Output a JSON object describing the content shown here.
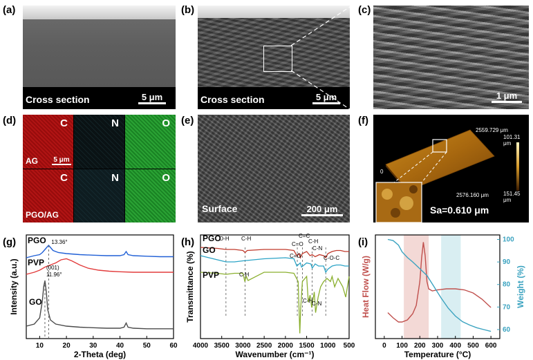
{
  "panels": {
    "a": {
      "letter": "(a)",
      "caption": "Cross section",
      "scale": "5 μm"
    },
    "b": {
      "letter": "(b)",
      "caption": "Cross section",
      "scale": "5 μm"
    },
    "c": {
      "letter": "(c)",
      "scale": "1 μm"
    },
    "d": {
      "letter": "(d)",
      "rows": [
        {
          "name": "AG",
          "elements": [
            "C",
            "N",
            "O"
          ]
        },
        {
          "name": "PGO/AG",
          "elements": [
            "C",
            "N",
            "O"
          ]
        }
      ],
      "scale": "5 μm"
    },
    "e": {
      "letter": "(e)",
      "caption": "Surface",
      "scale": "200 μm"
    },
    "f": {
      "letter": "(f)",
      "dim1": "2559.729 μm",
      "dim2": "2576.160 μm",
      "cmax": "101.31 μm",
      "cmin": "151.45 μm",
      "zero": "0",
      "sa": "Sa=0.610 μm"
    }
  },
  "chart_data": [
    {
      "id": "g",
      "type": "line",
      "letter": "(g)",
      "xlabel": "2-Theta (deg)",
      "ylabel": "Intensity (a.u.)",
      "xlim": [
        5,
        60
      ],
      "xticks": [
        "10",
        "20",
        "30",
        "40",
        "50",
        "60"
      ],
      "series": [
        {
          "name": "PGO",
          "color": "#1f5fd6",
          "peak_label": "13.36°",
          "x": [
            5,
            8,
            10,
            11,
            12,
            13,
            13.36,
            14,
            15,
            17,
            20,
            25,
            30,
            35,
            40,
            41.5,
            42.3,
            43,
            45,
            50,
            55,
            60
          ],
          "y": [
            0.78,
            0.8,
            0.81,
            0.83,
            0.86,
            0.89,
            0.9,
            0.88,
            0.85,
            0.83,
            0.82,
            0.81,
            0.805,
            0.8,
            0.8,
            0.81,
            0.84,
            0.81,
            0.8,
            0.795,
            0.79,
            0.79
          ]
        },
        {
          "name": "PVP",
          "color": "#e23b3b",
          "x": [
            5,
            8,
            10,
            12,
            14,
            16,
            18,
            20,
            22,
            25,
            28,
            32,
            36,
            40,
            45,
            50,
            55,
            60
          ],
          "y": [
            0.62,
            0.64,
            0.66,
            0.69,
            0.71,
            0.73,
            0.76,
            0.77,
            0.75,
            0.71,
            0.68,
            0.66,
            0.65,
            0.645,
            0.64,
            0.64,
            0.64,
            0.64
          ]
        },
        {
          "name": "GO",
          "color": "#4a4a4a",
          "peak_label": "(001)",
          "peak_label2": "11.96°",
          "x": [
            5,
            8,
            10,
            11,
            11.5,
            11.96,
            12.5,
            13,
            14,
            16,
            20,
            25,
            30,
            35,
            40,
            41.5,
            42.3,
            43,
            45,
            50,
            55,
            60
          ],
          "y": [
            0.12,
            0.14,
            0.2,
            0.36,
            0.5,
            0.56,
            0.45,
            0.28,
            0.18,
            0.14,
            0.12,
            0.11,
            0.105,
            0.1,
            0.1,
            0.11,
            0.15,
            0.11,
            0.1,
            0.095,
            0.095,
            0.095
          ]
        }
      ]
    },
    {
      "id": "h",
      "type": "line",
      "letter": "(h)",
      "xlabel": "Wavenumber (cm⁻¹)",
      "ylabel": "Transmittance (%)",
      "xlim": [
        4000,
        500
      ],
      "xticks": [
        "4000",
        "3500",
        "3000",
        "2500",
        "2000",
        "1500",
        "1000",
        "500"
      ],
      "series": [
        {
          "name": "PGO",
          "color": "#c0392b",
          "x": [
            4000,
            3600,
            3400,
            3200,
            3000,
            2950,
            2900,
            2500,
            2000,
            1800,
            1730,
            1680,
            1650,
            1600,
            1500,
            1420,
            1370,
            1300,
            1200,
            1100,
            1050,
            1000,
            900,
            800,
            700,
            600,
            500
          ],
          "y": [
            0.88,
            0.87,
            0.86,
            0.86,
            0.85,
            0.83,
            0.85,
            0.86,
            0.86,
            0.85,
            0.8,
            0.82,
            0.78,
            0.82,
            0.84,
            0.8,
            0.81,
            0.79,
            0.81,
            0.8,
            0.78,
            0.82,
            0.84,
            0.85,
            0.85,
            0.84,
            0.84
          ]
        },
        {
          "name": "GO",
          "color": "#2aa3c6",
          "x": [
            4000,
            3600,
            3400,
            3200,
            3000,
            2500,
            2000,
            1800,
            1730,
            1650,
            1620,
            1500,
            1400,
            1370,
            1300,
            1220,
            1100,
            1050,
            1000,
            900,
            800,
            700,
            600,
            500
          ],
          "y": [
            0.8,
            0.76,
            0.74,
            0.74,
            0.75,
            0.77,
            0.78,
            0.77,
            0.7,
            0.73,
            0.69,
            0.73,
            0.72,
            0.68,
            0.72,
            0.7,
            0.7,
            0.64,
            0.67,
            0.7,
            0.71,
            0.71,
            0.7,
            0.7
          ]
        },
        {
          "name": "PVP",
          "color": "#8aaf2e",
          "x": [
            4000,
            3600,
            3400,
            3200,
            3000,
            2955,
            2920,
            2880,
            2500,
            2000,
            1800,
            1700,
            1660,
            1640,
            1600,
            1500,
            1460,
            1420,
            1380,
            1320,
            1290,
            1230,
            1170,
            1100,
            1020,
            940,
            900,
            840,
            760,
            650,
            580,
            500
          ],
          "y": [
            0.64,
            0.63,
            0.62,
            0.63,
            0.63,
            0.55,
            0.6,
            0.56,
            0.64,
            0.64,
            0.63,
            0.55,
            0.05,
            0.3,
            0.55,
            0.6,
            0.35,
            0.42,
            0.3,
            0.45,
            0.25,
            0.4,
            0.5,
            0.55,
            0.58,
            0.55,
            0.6,
            0.5,
            0.58,
            0.5,
            0.4,
            0.6
          ]
        }
      ],
      "annotations": [
        "O-H",
        "C-H",
        "C=O",
        "C=C",
        "C-H",
        "C-N",
        "C-O-C",
        "C=O",
        "C-H",
        "C-H",
        "C-N"
      ]
    },
    {
      "id": "i",
      "type": "line",
      "letter": "(i)",
      "xlabel": "Temperature (°C)",
      "ylabel": "Heat Flow (W/g)",
      "y2label": "Weight (%)",
      "xlim": [
        -50,
        650
      ],
      "xticks": [
        "0",
        "100",
        "200",
        "300",
        "400",
        "500",
        "600"
      ],
      "y2lim": [
        56,
        102
      ],
      "y2ticks": [
        "60",
        "70",
        "80",
        "90",
        "100"
      ],
      "bands": [
        {
          "from": 110,
          "to": 250,
          "color": "#f3d9d6"
        },
        {
          "from": 320,
          "to": 430,
          "color": "#d9eef2"
        }
      ],
      "series": [
        {
          "name": "Heat Flow",
          "color": "#c0504d",
          "axis": "left",
          "x": [
            20,
            50,
            80,
            100,
            130,
            160,
            180,
            200,
            210,
            220,
            230,
            240,
            250,
            270,
            300,
            350,
            400,
            450,
            500,
            550,
            600
          ],
          "y": [
            0.25,
            0.2,
            0.16,
            0.16,
            0.18,
            0.24,
            0.32,
            0.55,
            0.78,
            0.93,
            0.8,
            0.55,
            0.48,
            0.46,
            0.47,
            0.48,
            0.48,
            0.47,
            0.44,
            0.38,
            0.3
          ]
        },
        {
          "name": "Weight",
          "color": "#3ba3c0",
          "axis": "right",
          "x": [
            20,
            50,
            80,
            100,
            130,
            160,
            200,
            240,
            280,
            320,
            360,
            400,
            440,
            480,
            520,
            560,
            600
          ],
          "y": [
            100,
            99.5,
            97.5,
            94.5,
            92,
            90,
            87,
            84,
            79,
            74,
            69.5,
            66,
            63.5,
            62,
            60.8,
            60,
            59.2
          ]
        }
      ]
    }
  ]
}
